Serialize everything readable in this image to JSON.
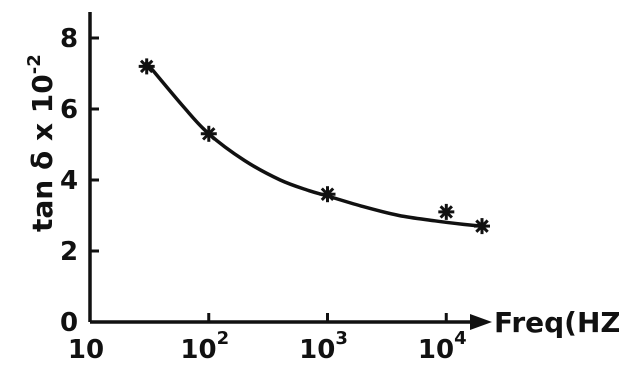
{
  "chart_data": {
    "type": "line",
    "xlabel": "Freq(HZ)",
    "ylabel": "tan δ x 10",
    "ylabel_exponent": "-2",
    "x_scale": "log",
    "xlim": [
      10,
      20000
    ],
    "ylim": [
      0,
      8
    ],
    "x_ticks": [
      {
        "value": 10,
        "base": "10",
        "exp": ""
      },
      {
        "value": 100,
        "base": "10",
        "exp": "2"
      },
      {
        "value": 1000,
        "base": "10",
        "exp": "3"
      },
      {
        "value": 10000,
        "base": "10",
        "exp": "4"
      }
    ],
    "y_ticks": [
      {
        "value": 0,
        "label": "0"
      },
      {
        "value": 2,
        "label": "2"
      },
      {
        "value": 4,
        "label": "4"
      },
      {
        "value": 6,
        "label": "6"
      },
      {
        "value": 8,
        "label": "8"
      }
    ],
    "grid": false,
    "series": [
      {
        "marker": "star",
        "x": [
          30,
          100,
          1000,
          10000,
          20000
        ],
        "y": [
          7.2,
          5.3,
          3.6,
          3.1,
          2.7
        ]
      }
    ],
    "fit_curve": {
      "x": [
        30,
        60,
        100,
        200,
        400,
        700,
        1000,
        2000,
        4000,
        8000,
        14000,
        20000
      ],
      "y": [
        7.3,
        6.1,
        5.3,
        4.55,
        4.0,
        3.7,
        3.55,
        3.25,
        3.0,
        2.85,
        2.75,
        2.7
      ]
    },
    "line_color": "#111111"
  }
}
